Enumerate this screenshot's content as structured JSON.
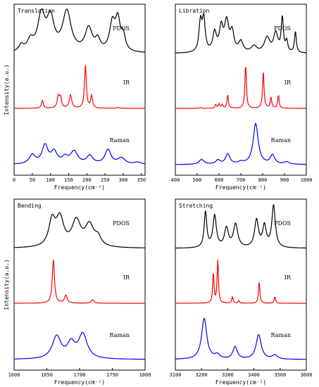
{
  "chart_data": [
    {
      "type": "line",
      "title": "Translation",
      "xlabel": "Frequency(cm⁻¹)",
      "ylabel": "Intensity(a.u.)",
      "xlim": [
        0,
        360
      ],
      "xticks": [
        0,
        50,
        100,
        150,
        200,
        250,
        300,
        350
      ],
      "series": [
        {
          "name": "PDOS",
          "color": "#000000",
          "peaks": [
            [
              20,
              0.15,
              8
            ],
            [
              45,
              0.25,
              10
            ],
            [
              75,
              0.85,
              12
            ],
            [
              100,
              0.75,
              12
            ],
            [
              145,
              0.95,
              14
            ],
            [
              205,
              0.55,
              12
            ],
            [
              230,
              0.25,
              8
            ],
            [
              270,
              0.65,
              9
            ],
            [
              285,
              0.7,
              8
            ],
            [
              300,
              0.35,
              7
            ]
          ]
        },
        {
          "name": "IR",
          "color": "#ff0000",
          "peaks": [
            [
              78,
              0.18,
              3
            ],
            [
              122,
              0.28,
              4
            ],
            [
              128,
              0.2,
              3
            ],
            [
              155,
              0.3,
              4
            ],
            [
              196,
              1.0,
              3
            ],
            [
              213,
              0.28,
              3
            ],
            [
              285,
              0.02,
              4
            ]
          ]
        },
        {
          "name": "Raman",
          "color": "#0000ff",
          "peaks": [
            [
              50,
              0.22,
              10
            ],
            [
              85,
              0.45,
              10
            ],
            [
              110,
              0.28,
              10
            ],
            [
              140,
              0.15,
              10
            ],
            [
              165,
              0.3,
              12
            ],
            [
              208,
              0.2,
              10
            ],
            [
              258,
              0.35,
              10
            ],
            [
              295,
              0.15,
              12
            ],
            [
              340,
              0.05,
              10
            ]
          ]
        }
      ]
    },
    {
      "type": "line",
      "title": "Libration",
      "xlabel": "Frequency(cm⁻¹)",
      "ylabel": "",
      "xlim": [
        400,
        1000
      ],
      "xticks": [
        400,
        500,
        600,
        700,
        800,
        900,
        1000
      ],
      "series": [
        {
          "name": "PDOS",
          "color": "#000000",
          "peaks": [
            [
              515,
              0.7,
              8
            ],
            [
              530,
              0.75,
              8
            ],
            [
              580,
              0.45,
              10
            ],
            [
              610,
              0.55,
              10
            ],
            [
              635,
              0.7,
              12
            ],
            [
              660,
              0.45,
              10
            ],
            [
              700,
              0.25,
              12
            ],
            [
              760,
              0.15,
              15
            ],
            [
              820,
              0.35,
              15
            ],
            [
              860,
              0.45,
              12
            ],
            [
              890,
              0.8,
              6
            ],
            [
              910,
              0.25,
              6
            ],
            [
              950,
              0.5,
              5
            ]
          ]
        },
        {
          "name": "IR",
          "color": "#ff0000",
          "peaks": [
            [
              515,
              0.02,
              4
            ],
            [
              585,
              0.08,
              4
            ],
            [
              600,
              0.1,
              4
            ],
            [
              615,
              0.08,
              4
            ],
            [
              640,
              0.3,
              4
            ],
            [
              722,
              1.0,
              4
            ],
            [
              803,
              0.85,
              4
            ],
            [
              838,
              0.25,
              4
            ],
            [
              872,
              0.3,
              4
            ]
          ]
        },
        {
          "name": "Raman",
          "color": "#0000ff",
          "peaks": [
            [
              520,
              0.12,
              14
            ],
            [
              595,
              0.1,
              12
            ],
            [
              640,
              0.25,
              12
            ],
            [
              700,
              0.05,
              15
            ],
            [
              768,
              1.0,
              14
            ],
            [
              845,
              0.22,
              12
            ],
            [
              910,
              0.06,
              15
            ]
          ]
        }
      ]
    },
    {
      "type": "line",
      "title": "Bending",
      "xlabel": "Frequency(cm⁻¹)",
      "ylabel": "Intensity(a.u.)",
      "xlim": [
        1600,
        1800
      ],
      "xticks": [
        1600,
        1650,
        1700,
        1750,
        1800
      ],
      "series": [
        {
          "name": "PDOS",
          "color": "#000000",
          "peaks": [
            [
              1658,
              0.6,
              6
            ],
            [
              1670,
              0.65,
              7
            ],
            [
              1695,
              0.6,
              8
            ],
            [
              1715,
              0.5,
              8
            ],
            [
              1728,
              0.2,
              6
            ]
          ]
        },
        {
          "name": "IR",
          "color": "#ff0000",
          "peaks": [
            [
              1660,
              1.0,
              2
            ],
            [
              1679,
              0.18,
              2.5
            ],
            [
              1720,
              0.08,
              2.5
            ]
          ]
        },
        {
          "name": "Raman",
          "color": "#0000ff",
          "peaks": [
            [
              1665,
              0.55,
              8
            ],
            [
              1687,
              0.35,
              7
            ],
            [
              1705,
              0.6,
              8
            ]
          ]
        }
      ]
    },
    {
      "type": "line",
      "title": "Stretching",
      "xlabel": "Frequency(cm⁻¹)",
      "ylabel": "",
      "xlim": [
        3100,
        3600
      ],
      "xticks": [
        3100,
        3200,
        3300,
        3400,
        3500,
        3600
      ],
      "series": [
        {
          "name": "PDOS",
          "color": "#000000",
          "peaks": [
            [
              3215,
              0.85,
              6
            ],
            [
              3250,
              0.75,
              8
            ],
            [
              3295,
              0.45,
              9
            ],
            [
              3330,
              0.55,
              10
            ],
            [
              3410,
              0.65,
              9
            ],
            [
              3440,
              0.5,
              8
            ],
            [
              3475,
              1.0,
              8
            ]
          ]
        },
        {
          "name": "IR",
          "color": "#ff0000",
          "peaks": [
            [
              3245,
              0.7,
              3
            ],
            [
              3262,
              1.0,
              3
            ],
            [
              3318,
              0.15,
              3
            ],
            [
              3342,
              0.06,
              3
            ],
            [
              3420,
              0.5,
              3
            ],
            [
              3480,
              0.15,
              3
            ]
          ]
        },
        {
          "name": "Raman",
          "color": "#0000ff",
          "peaks": [
            [
              3210,
              1.0,
              12
            ],
            [
              3260,
              0.1,
              12
            ],
            [
              3328,
              0.3,
              10
            ],
            [
              3418,
              0.6,
              12
            ],
            [
              3480,
              0.1,
              12
            ]
          ]
        }
      ]
    }
  ]
}
